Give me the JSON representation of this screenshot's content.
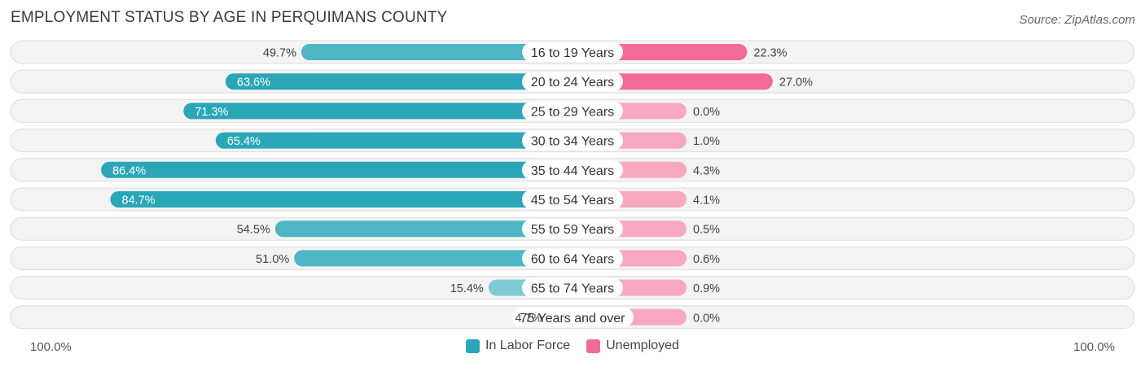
{
  "header": {
    "title": "EMPLOYMENT STATUS BY AGE IN PERQUIMANS COUNTY",
    "source": "Source: ZipAtlas.com"
  },
  "axis": {
    "left_label": "100.0%",
    "right_label": "100.0%"
  },
  "legend": [
    {
      "label": "In Labor Force",
      "color": "#2aa6b8"
    },
    {
      "label": "Unemployed",
      "color": "#f26b96"
    }
  ],
  "chart_data": {
    "type": "bar",
    "orientation": "horizontal-diverging",
    "title": "EMPLOYMENT STATUS BY AGE IN PERQUIMANS COUNTY",
    "categories": [
      "16 to 19 Years",
      "20 to 24 Years",
      "25 to 29 Years",
      "30 to 34 Years",
      "35 to 44 Years",
      "45 to 54 Years",
      "55 to 59 Years",
      "60 to 64 Years",
      "65 to 74 Years",
      "75 Years and over"
    ],
    "series": [
      {
        "name": "In Labor Force",
        "values": [
          49.7,
          63.6,
          71.3,
          65.4,
          86.4,
          84.7,
          54.5,
          51.0,
          15.4,
          4.7
        ],
        "labels": [
          "49.7%",
          "63.6%",
          "71.3%",
          "65.4%",
          "86.4%",
          "84.7%",
          "54.5%",
          "51.0%",
          "15.4%",
          "4.7%"
        ]
      },
      {
        "name": "Unemployed",
        "values": [
          22.3,
          27.0,
          0.0,
          1.0,
          4.3,
          4.1,
          0.5,
          0.6,
          0.9,
          0.0
        ],
        "labels": [
          "22.3%",
          "27.0%",
          "0.0%",
          "1.0%",
          "4.3%",
          "4.1%",
          "0.5%",
          "0.6%",
          "0.9%",
          "0.0%"
        ]
      }
    ],
    "xlim": [
      -100,
      100
    ],
    "legend_position": "bottom-center"
  }
}
